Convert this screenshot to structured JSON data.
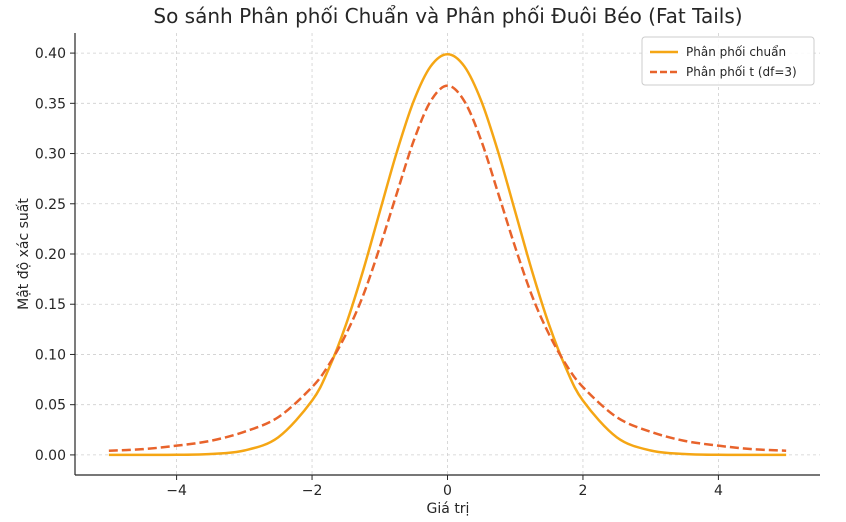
{
  "chart_data": {
    "type": "line",
    "title": "So sánh Phân phối Chuẩn và Phân phối Đuôi Béo (Fat Tails)",
    "xlabel": "Giá trị",
    "ylabel": "Mật độ xác suất",
    "xlim": [
      -5.5,
      5.5
    ],
    "ylim": [
      -0.02,
      0.42
    ],
    "x_ticks": [
      -4,
      -2,
      0,
      2,
      4
    ],
    "y_ticks": [
      0.0,
      0.05,
      0.1,
      0.15,
      0.2,
      0.25,
      0.3,
      0.35,
      0.4
    ],
    "x_tick_labels": [
      "−4",
      "−2",
      "0",
      "2",
      "4"
    ],
    "y_tick_labels": [
      "0.00",
      "0.05",
      "0.10",
      "0.15",
      "0.20",
      "0.25",
      "0.30",
      "0.35",
      "0.40"
    ],
    "grid": true,
    "legend_position": "top-right",
    "x": [
      -5,
      -4.5,
      -4,
      -3.5,
      -3,
      -2.5,
      -2,
      -1.75,
      -1.5,
      -1.25,
      -1,
      -0.75,
      -0.5,
      -0.25,
      0,
      0.25,
      0.5,
      0.75,
      1,
      1.25,
      1.5,
      1.75,
      2,
      2.5,
      3,
      3.5,
      4,
      4.5,
      5
    ],
    "series": [
      {
        "name": "Phân phối chuẩn",
        "color": "#f5a614",
        "dash": "solid",
        "values": [
          0.0,
          0.0,
          0.0001,
          0.0009,
          0.0044,
          0.0175,
          0.054,
          0.0863,
          0.1295,
          0.1826,
          0.242,
          0.3011,
          0.3521,
          0.3867,
          0.3989,
          0.3867,
          0.3521,
          0.3011,
          0.242,
          0.1826,
          0.1295,
          0.0863,
          0.054,
          0.0175,
          0.0044,
          0.0009,
          0.0001,
          0.0,
          0.0
        ]
      },
      {
        "name": "Phân phối t (df=3)",
        "color": "#e8632b",
        "dash": "dashed",
        "values": [
          0.0042,
          0.0057,
          0.0092,
          0.014,
          0.023,
          0.0375,
          0.0675,
          0.09,
          0.12,
          0.158,
          0.2067,
          0.26,
          0.3125,
          0.352,
          0.3676,
          0.352,
          0.3125,
          0.26,
          0.2067,
          0.158,
          0.12,
          0.09,
          0.0675,
          0.0375,
          0.023,
          0.014,
          0.0092,
          0.0057,
          0.0042
        ]
      }
    ]
  }
}
